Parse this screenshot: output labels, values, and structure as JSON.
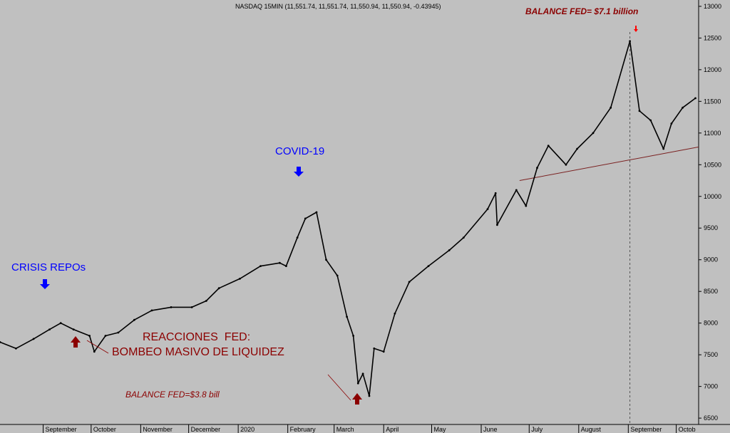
{
  "chart_data": {
    "type": "line",
    "title": "NASDAQ 15MIN (11,551.74, 11,551.74, 11,550.94, 11,550.94, -0.43945)",
    "xlabel": "",
    "ylabel": "",
    "ylim": [
      6400,
      13100
    ],
    "grid": false,
    "y_ticks": [
      6500,
      7000,
      7500,
      8000,
      8500,
      9000,
      9500,
      10000,
      10500,
      11000,
      11500,
      12000,
      12500,
      13000
    ],
    "x_ticks": [
      {
        "label": "September",
        "date": "2019-09-01"
      },
      {
        "label": "October",
        "date": "2019-10-01"
      },
      {
        "label": "November",
        "date": "2019-11-01"
      },
      {
        "label": "December",
        "date": "2019-12-01"
      },
      {
        "label": "2020",
        "date": "2020-01-01"
      },
      {
        "label": "February",
        "date": "2020-02-01"
      },
      {
        "label": "March",
        "date": "2020-03-01"
      },
      {
        "label": "April",
        "date": "2020-04-01"
      },
      {
        "label": "May",
        "date": "2020-05-01"
      },
      {
        "label": "June",
        "date": "2020-06-01"
      },
      {
        "label": "July",
        "date": "2020-07-01"
      },
      {
        "label": "August",
        "date": "2020-08-01"
      },
      {
        "label": "September",
        "date": "2020-09-01"
      },
      {
        "label": "Octob",
        "date": "2020-10-01"
      }
    ],
    "x_range": [
      "2019-08-05",
      "2020-10-15"
    ],
    "series": [
      {
        "color": "#000000",
        "points": [
          [
            "2019-08-05",
            7700
          ],
          [
            "2019-08-15",
            7600
          ],
          [
            "2019-08-26",
            7750
          ],
          [
            "2019-09-05",
            7900
          ],
          [
            "2019-09-12",
            8000
          ],
          [
            "2019-09-20",
            7900
          ],
          [
            "2019-09-30",
            7800
          ],
          [
            "2019-10-03",
            7550
          ],
          [
            "2019-10-10",
            7800
          ],
          [
            "2019-10-18",
            7850
          ],
          [
            "2019-10-28",
            8050
          ],
          [
            "2019-11-08",
            8200
          ],
          [
            "2019-11-20",
            8250
          ],
          [
            "2019-12-03",
            8250
          ],
          [
            "2019-12-12",
            8350
          ],
          [
            "2019-12-20",
            8550
          ],
          [
            "2020-01-02",
            8700
          ],
          [
            "2020-01-15",
            8900
          ],
          [
            "2020-01-27",
            8950
          ],
          [
            "2020-01-31",
            8900
          ],
          [
            "2020-02-07",
            9350
          ],
          [
            "2020-02-12",
            9650
          ],
          [
            "2020-02-19",
            9750
          ],
          [
            "2020-02-25",
            9000
          ],
          [
            "2020-03-03",
            8750
          ],
          [
            "2020-03-09",
            8100
          ],
          [
            "2020-03-13",
            7800
          ],
          [
            "2020-03-16",
            7050
          ],
          [
            "2020-03-19",
            7200
          ],
          [
            "2020-03-23",
            6850
          ],
          [
            "2020-03-26",
            7600
          ],
          [
            "2020-04-01",
            7550
          ],
          [
            "2020-04-08",
            8150
          ],
          [
            "2020-04-17",
            8650
          ],
          [
            "2020-04-29",
            8900
          ],
          [
            "2020-05-12",
            9150
          ],
          [
            "2020-05-21",
            9350
          ],
          [
            "2020-06-05",
            9800
          ],
          [
            "2020-06-10",
            10050
          ],
          [
            "2020-06-11",
            9550
          ],
          [
            "2020-06-23",
            10100
          ],
          [
            "2020-06-29",
            9850
          ],
          [
            "2020-07-06",
            10450
          ],
          [
            "2020-07-13",
            10800
          ],
          [
            "2020-07-24",
            10500
          ],
          [
            "2020-07-31",
            10750
          ],
          [
            "2020-08-10",
            11000
          ],
          [
            "2020-08-21",
            11400
          ],
          [
            "2020-09-02",
            12450
          ],
          [
            "2020-09-08",
            11350
          ],
          [
            "2020-09-15",
            11200
          ],
          [
            "2020-09-23",
            10750
          ],
          [
            "2020-09-28",
            11150
          ],
          [
            "2020-10-05",
            11400
          ],
          [
            "2020-10-13",
            11550
          ]
        ]
      }
    ],
    "trendline": {
      "start": [
        "2020-06-25",
        10250
      ],
      "end": [
        "2020-10-15",
        10780
      ],
      "color": "#7a2020"
    },
    "vline": {
      "date": "2020-09-02",
      "style": "dashed"
    },
    "annotations": {
      "crisis_repos": "CRISIS REPOs",
      "covid": "COVID-19",
      "balance_fed_top": "BALANCE FED= $7.1 billion",
      "reacciones_line1": "REACCIONES  FED:",
      "reacciones_line2": "BOMBEO MASIVO DE LIQUIDEZ",
      "balance_fed_bottom": "BALANCE FED=$3.8 bill"
    },
    "colors": {
      "background": "#c0c0c0",
      "blue_text": "#0000ff",
      "red_text": "#8b0000",
      "up_arrow": "#8b0000",
      "down_arrow": "#0000ff",
      "top_arrow": "#ff0000"
    }
  }
}
